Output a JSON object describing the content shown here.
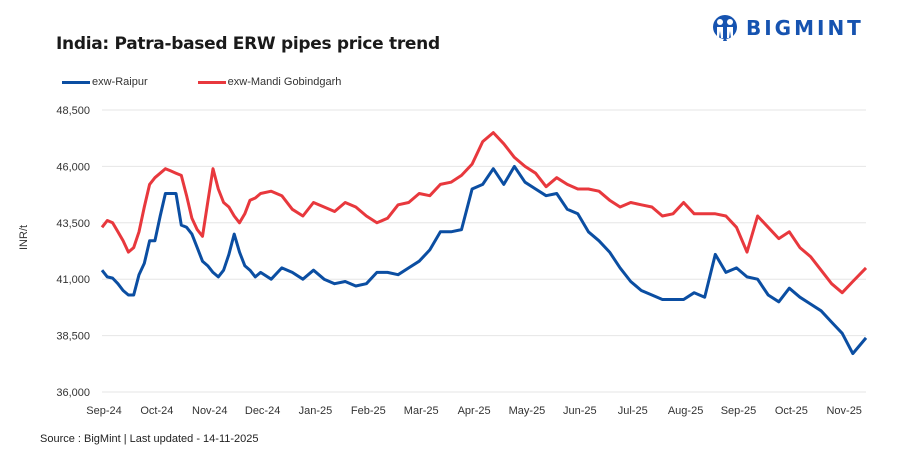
{
  "header": {
    "title": "India: Patra-based ERW pipes price trend",
    "brand": "BIGMINT"
  },
  "footer": {
    "source": "Source : BigMint | Last updated - 14-11-2025"
  },
  "colors": {
    "raipur": "#0b4ea2",
    "mandi": "#e8383d",
    "grid": "#e6e6e6",
    "brand": "#1653b0"
  },
  "chart_data": {
    "type": "line",
    "title": "India: Patra-based ERW pipes price trend",
    "xlabel": "",
    "ylabel": "INR/t",
    "ylim": [
      36000,
      48500
    ],
    "yticks": [
      36000,
      38500,
      41000,
      43500,
      46000,
      48500
    ],
    "ytick_labels": [
      "36,000",
      "38,500",
      "41,000",
      "43,500",
      "46,000",
      "48,500"
    ],
    "x_tick_labels": [
      "Sep-24",
      "Oct-24",
      "Nov-24",
      "Dec-24",
      "Jan-25",
      "Feb-25",
      "Mar-25",
      "Apr-25",
      "May-25",
      "Jun-25",
      "Jul-25",
      "Aug-25",
      "Sep-25",
      "Oct-25",
      "Nov-25"
    ],
    "x_range_months": [
      0,
      14.45
    ],
    "grid": true,
    "legend": "top-left",
    "series": [
      {
        "name": "exw-Raipur",
        "color": "#0b4ea2",
        "x": [
          0,
          0.1,
          0.2,
          0.3,
          0.4,
          0.5,
          0.6,
          0.7,
          0.8,
          0.9,
          1.0,
          1.1,
          1.2,
          1.3,
          1.4,
          1.5,
          1.6,
          1.7,
          1.8,
          1.9,
          2.0,
          2.1,
          2.2,
          2.3,
          2.4,
          2.5,
          2.6,
          2.7,
          2.8,
          2.9,
          3.0,
          3.2,
          3.4,
          3.6,
          3.8,
          4.0,
          4.2,
          4.4,
          4.6,
          4.8,
          5.0,
          5.2,
          5.4,
          5.6,
          5.8,
          6.0,
          6.2,
          6.4,
          6.6,
          6.8,
          7.0,
          7.2,
          7.4,
          7.6,
          7.8,
          8.0,
          8.2,
          8.4,
          8.6,
          8.8,
          9.0,
          9.2,
          9.4,
          9.6,
          9.8,
          10.0,
          10.2,
          10.4,
          10.6,
          10.8,
          11.0,
          11.2,
          11.4,
          11.6,
          11.8,
          12.0,
          12.2,
          12.4,
          12.6,
          12.8,
          13.0,
          13.2,
          13.4,
          13.6,
          13.8,
          14.0,
          14.2,
          14.45
        ],
        "values": [
          41400,
          41100,
          41050,
          40800,
          40500,
          40300,
          40300,
          41200,
          41700,
          42700,
          42700,
          43800,
          44800,
          44800,
          44800,
          43400,
          43300,
          43000,
          42400,
          41800,
          41600,
          41300,
          41100,
          41400,
          42100,
          43000,
          42200,
          41600,
          41400,
          41100,
          41300,
          41000,
          41500,
          41300,
          41000,
          41400,
          41000,
          40800,
          40900,
          40700,
          40800,
          41300,
          41300,
          41200,
          41500,
          41800,
          42300,
          43100,
          43100,
          43200,
          45000,
          45200,
          45900,
          45200,
          46000,
          45300,
          45000,
          44700,
          44800,
          44100,
          43900,
          43100,
          42700,
          42200,
          41500,
          40900,
          40500,
          40300,
          40100,
          40100,
          40100,
          40400,
          40200,
          42100,
          41300,
          41500,
          41100,
          41000,
          40300,
          40000,
          40600,
          40200,
          39900,
          39600,
          39100,
          38600,
          37700,
          38400
        ]
      },
      {
        "name": "exw-Mandi Gobindgarh",
        "color": "#e8383d",
        "x": [
          0,
          0.1,
          0.2,
          0.3,
          0.4,
          0.5,
          0.6,
          0.7,
          0.8,
          0.9,
          1.0,
          1.1,
          1.2,
          1.3,
          1.4,
          1.5,
          1.6,
          1.7,
          1.8,
          1.9,
          2.0,
          2.1,
          2.2,
          2.3,
          2.4,
          2.5,
          2.6,
          2.7,
          2.8,
          2.9,
          3.0,
          3.2,
          3.4,
          3.6,
          3.8,
          4.0,
          4.2,
          4.4,
          4.6,
          4.8,
          5.0,
          5.2,
          5.4,
          5.6,
          5.8,
          6.0,
          6.2,
          6.4,
          6.6,
          6.8,
          7.0,
          7.2,
          7.4,
          7.6,
          7.8,
          8.0,
          8.2,
          8.4,
          8.6,
          8.8,
          9.0,
          9.2,
          9.4,
          9.6,
          9.8,
          10.0,
          10.2,
          10.4,
          10.6,
          10.8,
          11.0,
          11.2,
          11.4,
          11.6,
          11.8,
          12.0,
          12.2,
          12.4,
          12.6,
          12.8,
          13.0,
          13.2,
          13.4,
          13.6,
          13.8,
          14.0,
          14.2,
          14.45
        ],
        "values": [
          43300,
          43600,
          43500,
          43100,
          42700,
          42200,
          42400,
          43100,
          44200,
          45200,
          45500,
          45700,
          45900,
          45800,
          45700,
          45600,
          44700,
          43700,
          43200,
          42900,
          44400,
          45900,
          45000,
          44400,
          44200,
          43800,
          43500,
          43900,
          44500,
          44600,
          44800,
          44900,
          44700,
          44100,
          43800,
          44400,
          44200,
          44000,
          44400,
          44200,
          43800,
          43500,
          43700,
          44300,
          44400,
          44800,
          44700,
          45200,
          45300,
          45600,
          46100,
          47100,
          47500,
          47000,
          46400,
          46000,
          45700,
          45100,
          45500,
          45200,
          45000,
          45000,
          44900,
          44500,
          44200,
          44400,
          44300,
          44200,
          43800,
          43900,
          44400,
          43900,
          43900,
          43900,
          43800,
          43300,
          42200,
          43800,
          43300,
          42800,
          43100,
          42400,
          42000,
          41400,
          40800,
          40400,
          40900,
          41500
        ]
      }
    ]
  }
}
